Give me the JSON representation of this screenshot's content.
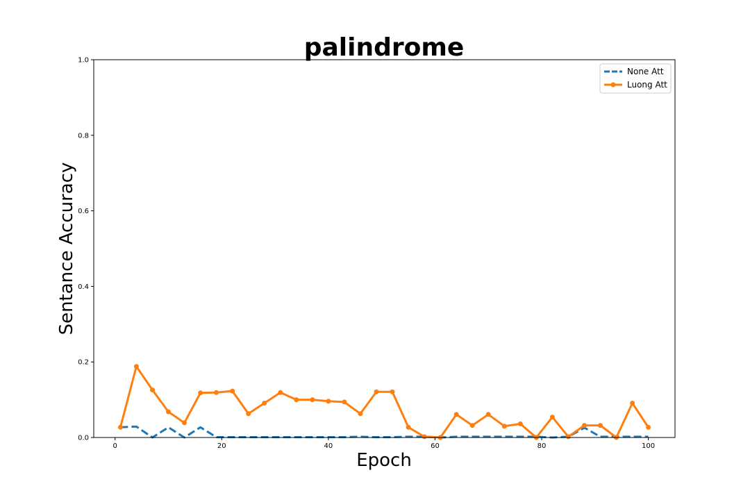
{
  "chart_data": {
    "type": "line",
    "title": "palindrome",
    "xlabel": "Epoch",
    "ylabel": "Sentance Accuracy",
    "xlim": [
      -4,
      105
    ],
    "ylim": [
      0,
      1.0
    ],
    "xticks": [
      0,
      20,
      40,
      60,
      80,
      100
    ],
    "yticks": [
      0.0,
      0.2,
      0.4,
      0.6,
      0.8,
      1.0
    ],
    "xtick_labels": [
      "0",
      "20",
      "40",
      "60",
      "80",
      "100"
    ],
    "ytick_labels": [
      "0.0",
      "0.2",
      "0.4",
      "0.6",
      "0.8",
      "1.0"
    ],
    "legend_position": "top-right",
    "x": [
      1,
      4,
      7,
      10,
      13,
      16,
      19,
      22,
      25,
      28,
      31,
      34,
      37,
      40,
      43,
      46,
      49,
      52,
      55,
      58,
      61,
      64,
      67,
      70,
      73,
      76,
      79,
      82,
      85,
      88,
      91,
      94,
      97,
      100
    ],
    "series": [
      {
        "name": "None Att",
        "color": "#1f77b4",
        "style": "dashed",
        "marker": "none",
        "values": [
          0.027,
          0.029,
          0.0,
          0.027,
          0.0,
          0.027,
          0.001,
          0.001,
          0.001,
          0.001,
          0.001,
          0.001,
          0.001,
          0.001,
          0.001,
          0.002,
          0.001,
          0.001,
          0.002,
          0.002,
          0.0,
          0.002,
          0.002,
          0.002,
          0.002,
          0.002,
          0.002,
          0.0,
          0.002,
          0.026,
          0.002,
          0.002,
          0.002,
          0.002
        ]
      },
      {
        "name": "Luong Att",
        "color": "#ff7f0e",
        "style": "solid",
        "marker": "circle",
        "values": [
          0.027,
          0.188,
          0.126,
          0.068,
          0.039,
          0.118,
          0.119,
          0.123,
          0.063,
          0.091,
          0.119,
          0.1,
          0.1,
          0.096,
          0.094,
          0.063,
          0.121,
          0.121,
          0.027,
          0.002,
          0.0,
          0.061,
          0.032,
          0.061,
          0.03,
          0.036,
          0.0,
          0.054,
          0.002,
          0.032,
          0.032,
          0.0,
          0.091,
          0.027
        ]
      }
    ]
  }
}
